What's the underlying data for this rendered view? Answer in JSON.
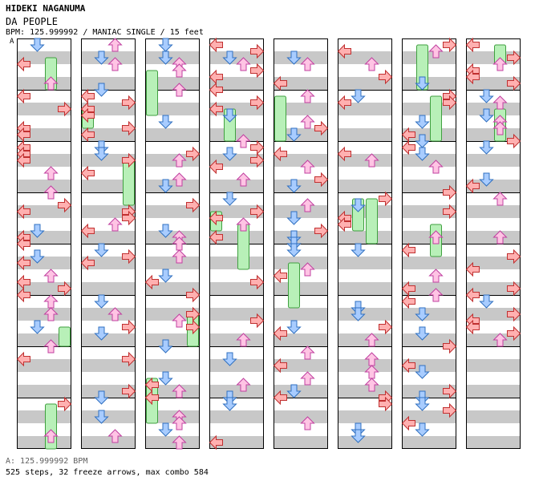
{
  "song": {
    "artist": "HIDEKI NAGANUMA",
    "title": "DA PEOPLE",
    "info_line": "BPM: 125.999992 / MANIAC SINGLE / 15 feet",
    "bpm_marker": "A"
  },
  "footer": {
    "bpm_line": "A: 125.999992 BPM",
    "stats_line": "525 steps, 32 freeze arrows, max combo 584"
  },
  "colors": {
    "stripe": "#c8c8c8",
    "frame": "#000000",
    "left": "#ffb0b0",
    "left_stroke": "#c03030",
    "down": "#a8ccff",
    "down_stroke": "#3070c0",
    "up": "#ffc4e4",
    "up_stroke": "#c040a0",
    "right": "#ffb0b0",
    "right_stroke": "#c03030",
    "freeze": "#b8f0b8",
    "freeze_stroke": "#40a040"
  },
  "chart_data": {
    "type": "table",
    "description": "Step chart columns; each column holds measures of 4 lanes (left, down, up, right)",
    "lanes": [
      "left",
      "down",
      "up",
      "right"
    ],
    "columns": 8,
    "measures_per_column": 8,
    "empty_tail_measures_in_last_column": 2
  }
}
